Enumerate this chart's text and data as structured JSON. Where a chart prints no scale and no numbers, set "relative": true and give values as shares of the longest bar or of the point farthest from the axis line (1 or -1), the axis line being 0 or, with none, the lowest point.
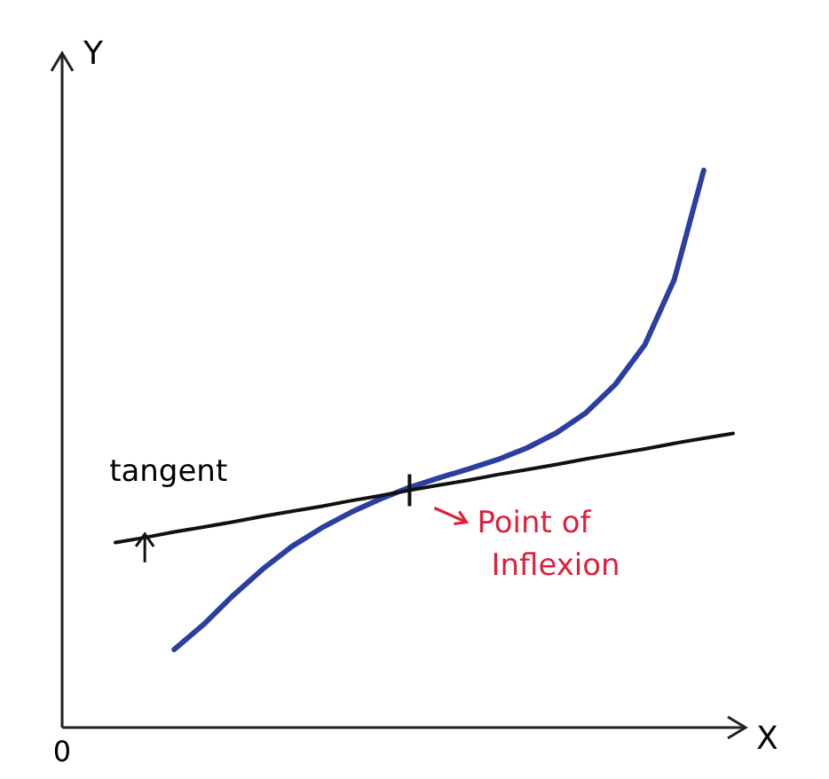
{
  "chart_data": {
    "type": "line",
    "relative": true,
    "xlabel": "X",
    "ylabel": "Y",
    "marker": "none",
    "line_style": "solid",
    "categories": [
      null,
      null,
      null,
      null,
      null,
      null,
      null,
      null,
      null,
      null,
      null,
      null,
      null,
      null,
      null,
      null,
      null,
      null,
      null,
      null,
      null,
      null
    ],
    "series": [
      {
        "color": "#2a3fa0",
        "values": [
          null,
          null,
          0.14,
          0.185,
          0.237,
          0.284,
          0.325,
          0.358,
          0.386,
          0.41,
          0.431,
          0.448,
          0.464,
          0.481,
          0.502,
          0.529,
          0.565,
          0.616,
          0.687,
          0.804,
          1,
          null
        ]
      },
      {
        "color": "#111111",
        "values": [
          0.332,
          0.341,
          0.351,
          0.36,
          0.369,
          0.379,
          0.388,
          0.397,
          0.407,
          0.416,
          0.426,
          0.435,
          0.444,
          0.454,
          0.463,
          0.472,
          0.482,
          0.491,
          0.5,
          0.51,
          0.519,
          0.528
        ]
      }
    ],
    "annotations": [
      "tangent",
      "Point of Inflexion",
      "0"
    ]
  }
}
